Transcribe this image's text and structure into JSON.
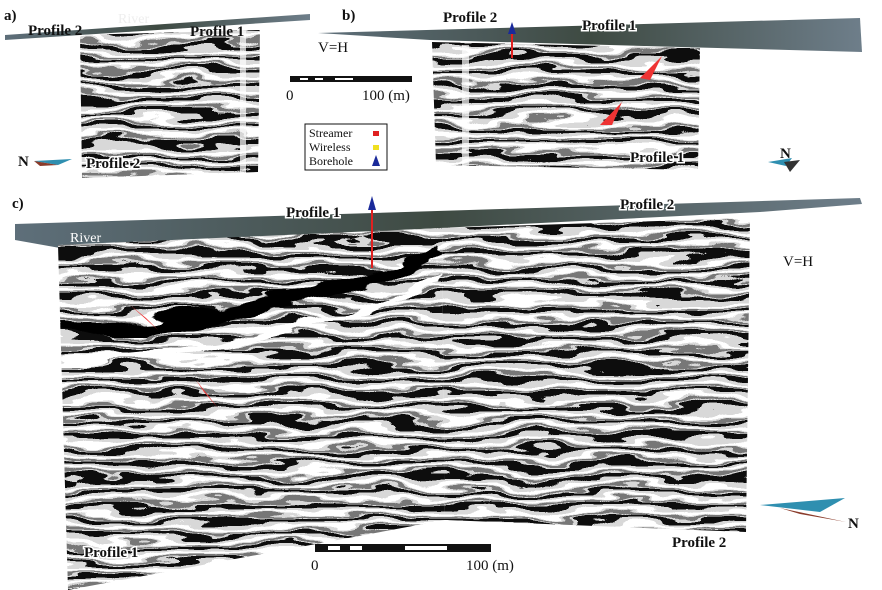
{
  "panels": [
    {
      "label": "a)",
      "top_labels": [
        "Profile 2",
        "River",
        "Profile 1"
      ],
      "section_labels": [
        "Profile 2"
      ],
      "north": "N"
    },
    {
      "label": "b)",
      "top_labels": [
        "Profile 2",
        "Profile 1"
      ],
      "section_labels": [
        "Profile 1"
      ],
      "north": "N"
    },
    {
      "label": "c)",
      "top_labels": [
        "River",
        "Profile 1",
        "Profile 2"
      ],
      "section_labels": [
        "Profile 1",
        "Profile 2"
      ],
      "north": "N"
    }
  ],
  "ratio_labels": [
    "V=H",
    "V=H"
  ],
  "scale_bars": [
    {
      "start": "0",
      "end": "100 (m)"
    },
    {
      "start": "0",
      "end": "100 (m)"
    }
  ],
  "legend": [
    {
      "label": "Streamer"
    },
    {
      "label": "Wireless"
    },
    {
      "label": "Borehole"
    }
  ]
}
